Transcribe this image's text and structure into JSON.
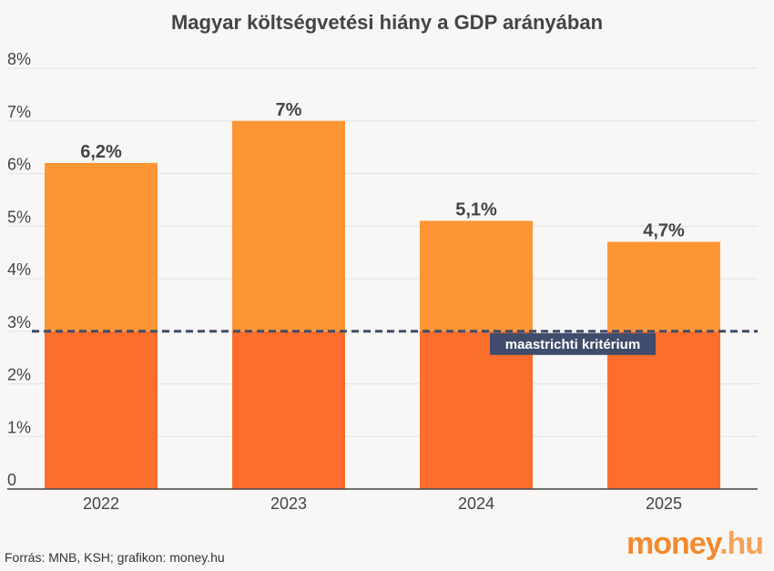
{
  "chart_data": {
    "type": "bar",
    "title": "Magyar költségvetési hiány a GDP arányában",
    "categories": [
      "2022",
      "2023",
      "2024",
      "2025"
    ],
    "values": [
      6.2,
      7.0,
      5.1,
      4.7
    ],
    "data_labels": [
      "6,2%",
      "7%",
      "5,1%",
      "4,7%"
    ],
    "ylim": [
      0,
      8
    ],
    "yticks": [
      0,
      1,
      2,
      3,
      4,
      5,
      6,
      7,
      8
    ],
    "ytick_labels": [
      "0",
      "1%",
      "2%",
      "3%",
      "4%",
      "5%",
      "6%",
      "7%",
      "8%"
    ],
    "grid": true,
    "reference_line": {
      "value": 3,
      "label": "maastrichti kritérium",
      "style": "dashed"
    },
    "colors": {
      "below_reference": "#fd6e2c",
      "above_reference": "#fe9535",
      "reference_line": "#3f4c6b",
      "reference_label_bg": "#3f4c6b"
    }
  },
  "footer": {
    "source": "Forrás: MNB, KSH; grafikon: money.hu",
    "logo_main": "money",
    "logo_tld": ".hu"
  }
}
